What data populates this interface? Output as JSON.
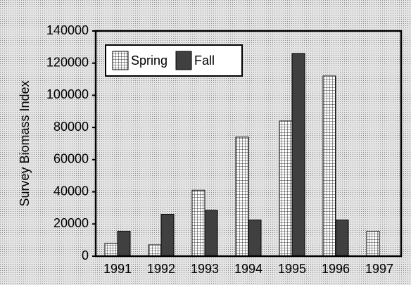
{
  "chart_data": {
    "type": "bar",
    "y_label": "Survey Biomass Index",
    "categories": [
      "1991",
      "1992",
      "1993",
      "1994",
      "1995",
      "1996",
      "1997"
    ],
    "series": [
      {
        "name": "Spring",
        "color": "#ffffff",
        "hatch": "grid",
        "values": [
          8000,
          7000,
          41000,
          74000,
          84000,
          112000,
          15500
        ]
      },
      {
        "name": "Fall",
        "color": "#404040",
        "values": [
          15500,
          26000,
          28500,
          22500,
          126000,
          22500,
          0
        ]
      }
    ],
    "ylim": [
      0,
      140000
    ],
    "yticks": [
      0,
      20000,
      40000,
      60000,
      80000,
      100000,
      120000,
      140000
    ],
    "legend": "top-left"
  }
}
